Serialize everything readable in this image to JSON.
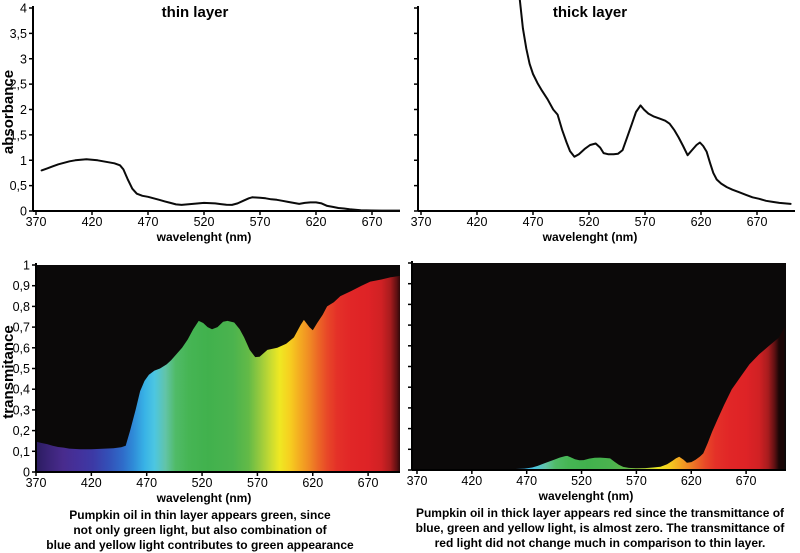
{
  "figure": {
    "background": "#ffffff",
    "plot_background_dark": "#0b0909",
    "curve_color": "#0a0a0a"
  },
  "captions": {
    "thin": {
      "lines": [
        "Pumpkin oil in thin layer appears green, since",
        "not only green light, but also combination of",
        "blue and yellow light contributes to green appearance"
      ]
    },
    "thick": {
      "lines": [
        "Pumpkin oil in thick layer appears red since the transmittance of",
        "blue, green and yellow light, is almost zero. The transmittance of",
        "red light did not change much in comparison to thin layer."
      ]
    }
  },
  "spectrum_stops": [
    {
      "nm": 370,
      "color": "#2B1C60"
    },
    {
      "nm": 382,
      "color": "#3B2478"
    },
    {
      "nm": 394,
      "color": "#482B8C"
    },
    {
      "nm": 408,
      "color": "#44319B"
    },
    {
      "nm": 422,
      "color": "#3C3AA6"
    },
    {
      "nm": 436,
      "color": "#3351B8"
    },
    {
      "nm": 448,
      "color": "#2F6BC9"
    },
    {
      "nm": 458,
      "color": "#2F8CD8"
    },
    {
      "nm": 468,
      "color": "#38B2E6"
    },
    {
      "nm": 477,
      "color": "#4CC6E2"
    },
    {
      "nm": 487,
      "color": "#62C4A8"
    },
    {
      "nm": 496,
      "color": "#50BB68"
    },
    {
      "nm": 508,
      "color": "#46B554"
    },
    {
      "nm": 525,
      "color": "#41B14D"
    },
    {
      "nm": 548,
      "color": "#4BB34E"
    },
    {
      "nm": 562,
      "color": "#63BA47"
    },
    {
      "nm": 572,
      "color": "#95C93E"
    },
    {
      "nm": 582,
      "color": "#C8DB31"
    },
    {
      "nm": 590,
      "color": "#EFE822"
    },
    {
      "nm": 599,
      "color": "#F6D020"
    },
    {
      "nm": 608,
      "color": "#F4AC21"
    },
    {
      "nm": 617,
      "color": "#F08A24"
    },
    {
      "nm": 625,
      "color": "#EC6726"
    },
    {
      "nm": 633,
      "color": "#E84828"
    },
    {
      "nm": 642,
      "color": "#E43128"
    },
    {
      "nm": 655,
      "color": "#E12627"
    },
    {
      "nm": 670,
      "color": "#DE2326"
    },
    {
      "nm": 682,
      "color": "#D02124"
    },
    {
      "nm": 690,
      "color": "#A81C1E"
    },
    {
      "nm": 696,
      "color": "#5E1012"
    },
    {
      "nm": 700,
      "color": "#1A0606"
    }
  ],
  "chart_data": [
    {
      "type": "line",
      "title": "thin layer",
      "xlabel": "wavelenght (nm)",
      "ylabel": "absorbance",
      "xlim": [
        370,
        700
      ],
      "ylim": [
        0,
        4
      ],
      "x_tick_labels": [
        "370",
        "420",
        "470",
        "520",
        "570",
        "620",
        "670"
      ],
      "y_tick_labels": [
        "4",
        "3,5",
        "3",
        "2,5",
        "2",
        "1,5",
        "1",
        "0,5",
        "0"
      ],
      "points": [
        [
          375,
          0.8
        ],
        [
          380,
          0.84
        ],
        [
          385,
          0.88
        ],
        [
          390,
          0.92
        ],
        [
          395,
          0.95
        ],
        [
          400,
          0.98
        ],
        [
          405,
          1.0
        ],
        [
          410,
          1.01
        ],
        [
          415,
          1.02
        ],
        [
          420,
          1.01
        ],
        [
          425,
          1.0
        ],
        [
          430,
          0.98
        ],
        [
          435,
          0.96
        ],
        [
          440,
          0.94
        ],
        [
          445,
          0.9
        ],
        [
          448,
          0.82
        ],
        [
          452,
          0.62
        ],
        [
          456,
          0.44
        ],
        [
          460,
          0.34
        ],
        [
          465,
          0.3
        ],
        [
          470,
          0.28
        ],
        [
          475,
          0.25
        ],
        [
          480,
          0.22
        ],
        [
          485,
          0.19
        ],
        [
          490,
          0.16
        ],
        [
          495,
          0.13
        ],
        [
          500,
          0.12
        ],
        [
          505,
          0.13
        ],
        [
          510,
          0.14
        ],
        [
          515,
          0.15
        ],
        [
          520,
          0.16
        ],
        [
          525,
          0.155
        ],
        [
          530,
          0.15
        ],
        [
          535,
          0.135
        ],
        [
          540,
          0.125
        ],
        [
          545,
          0.12
        ],
        [
          550,
          0.15
        ],
        [
          555,
          0.2
        ],
        [
          560,
          0.25
        ],
        [
          563,
          0.27
        ],
        [
          570,
          0.26
        ],
        [
          575,
          0.25
        ],
        [
          580,
          0.23
        ],
        [
          585,
          0.22
        ],
        [
          590,
          0.2
        ],
        [
          595,
          0.18
        ],
        [
          600,
          0.16
        ],
        [
          605,
          0.14
        ],
        [
          610,
          0.16
        ],
        [
          615,
          0.17
        ],
        [
          620,
          0.17
        ],
        [
          625,
          0.15
        ],
        [
          630,
          0.1
        ],
        [
          635,
          0.08
        ],
        [
          640,
          0.06
        ],
        [
          645,
          0.05
        ],
        [
          650,
          0.035
        ],
        [
          655,
          0.025
        ],
        [
          660,
          0.015
        ],
        [
          665,
          0.012
        ],
        [
          670,
          0.01
        ],
        [
          680,
          0.008
        ],
        [
          690,
          0.007
        ],
        [
          695,
          0.007
        ]
      ]
    },
    {
      "type": "line",
      "title": "thick layer",
      "xlabel": "wavelenght (nm)",
      "ylabel": "",
      "xlim": [
        370,
        700
      ],
      "ylim": [
        0,
        4
      ],
      "x_tick_labels": [
        "370",
        "420",
        "470",
        "520",
        "570",
        "620",
        "670"
      ],
      "y_tick_labels": [
        "",
        "",
        "",
        "",
        "",
        "",
        "",
        "",
        ""
      ],
      "points": [
        [
          458,
          4.2
        ],
        [
          461,
          3.6
        ],
        [
          464,
          3.2
        ],
        [
          467,
          2.9
        ],
        [
          470,
          2.7
        ],
        [
          474,
          2.52
        ],
        [
          478,
          2.37
        ],
        [
          483,
          2.2
        ],
        [
          488,
          2.0
        ],
        [
          492,
          1.9
        ],
        [
          496,
          1.6
        ],
        [
          500,
          1.35
        ],
        [
          503,
          1.18
        ],
        [
          507,
          1.07
        ],
        [
          511,
          1.12
        ],
        [
          516,
          1.22
        ],
        [
          521,
          1.3
        ],
        [
          526,
          1.33
        ],
        [
          530,
          1.25
        ],
        [
          533,
          1.14
        ],
        [
          537,
          1.12
        ],
        [
          542,
          1.12
        ],
        [
          546,
          1.13
        ],
        [
          550,
          1.2
        ],
        [
          554,
          1.45
        ],
        [
          558,
          1.7
        ],
        [
          562,
          1.95
        ],
        [
          566,
          2.08
        ],
        [
          569,
          2.0
        ],
        [
          573,
          1.92
        ],
        [
          578,
          1.86
        ],
        [
          583,
          1.82
        ],
        [
          588,
          1.78
        ],
        [
          592,
          1.72
        ],
        [
          596,
          1.6
        ],
        [
          600,
          1.45
        ],
        [
          604,
          1.28
        ],
        [
          608,
          1.1
        ],
        [
          612,
          1.2
        ],
        [
          616,
          1.3
        ],
        [
          619,
          1.35
        ],
        [
          622,
          1.28
        ],
        [
          625,
          1.17
        ],
        [
          628,
          0.95
        ],
        [
          631,
          0.75
        ],
        [
          634,
          0.62
        ],
        [
          638,
          0.54
        ],
        [
          643,
          0.47
        ],
        [
          648,
          0.42
        ],
        [
          654,
          0.37
        ],
        [
          660,
          0.32
        ],
        [
          666,
          0.27
        ],
        [
          672,
          0.24
        ],
        [
          678,
          0.2
        ],
        [
          684,
          0.18
        ],
        [
          690,
          0.16
        ],
        [
          695,
          0.15
        ],
        [
          700,
          0.14
        ]
      ]
    },
    {
      "type": "area",
      "title": "",
      "xlabel": "wavelenght (nm)",
      "ylabel": "transmitance",
      "xlim": [
        370,
        700
      ],
      "ylim": [
        0,
        1
      ],
      "fill": "spectrum",
      "background": "#0b0909",
      "x_tick_labels": [
        "370",
        "420",
        "470",
        "520",
        "570",
        "620",
        "670"
      ],
      "y_tick_labels": [
        "1",
        "0,9",
        "0,8",
        "0,7",
        "0,6",
        "0,5",
        "0,4",
        "0,3",
        "0,2",
        "0,1",
        "0"
      ],
      "points": [
        [
          370,
          0.147
        ],
        [
          375,
          0.14
        ],
        [
          380,
          0.135
        ],
        [
          385,
          0.127
        ],
        [
          390,
          0.121
        ],
        [
          395,
          0.118
        ],
        [
          400,
          0.113
        ],
        [
          410,
          0.11
        ],
        [
          420,
          0.11
        ],
        [
          430,
          0.112
        ],
        [
          440,
          0.115
        ],
        [
          447,
          0.12
        ],
        [
          451,
          0.127
        ],
        [
          455,
          0.2
        ],
        [
          460,
          0.3
        ],
        [
          464,
          0.39
        ],
        [
          468,
          0.44
        ],
        [
          472,
          0.47
        ],
        [
          477,
          0.49
        ],
        [
          482,
          0.5
        ],
        [
          488,
          0.52
        ],
        [
          492,
          0.54
        ],
        [
          497,
          0.57
        ],
        [
          502,
          0.6
        ],
        [
          507,
          0.64
        ],
        [
          512,
          0.69
        ],
        [
          517,
          0.73
        ],
        [
          521,
          0.72
        ],
        [
          525,
          0.7
        ],
        [
          529,
          0.69
        ],
        [
          534,
          0.7
        ],
        [
          539,
          0.726
        ],
        [
          543,
          0.73
        ],
        [
          549,
          0.722
        ],
        [
          554,
          0.69
        ],
        [
          558,
          0.65
        ],
        [
          563,
          0.59
        ],
        [
          568,
          0.555
        ],
        [
          572,
          0.557
        ],
        [
          579,
          0.59
        ],
        [
          588,
          0.6
        ],
        [
          596,
          0.62
        ],
        [
          603,
          0.65
        ],
        [
          609,
          0.71
        ],
        [
          612,
          0.735
        ],
        [
          617,
          0.7
        ],
        [
          620,
          0.685
        ],
        [
          624,
          0.72
        ],
        [
          629,
          0.76
        ],
        [
          633,
          0.8
        ],
        [
          639,
          0.82
        ],
        [
          645,
          0.85
        ],
        [
          655,
          0.875
        ],
        [
          664,
          0.9
        ],
        [
          672,
          0.92
        ],
        [
          682,
          0.93
        ],
        [
          690,
          0.94
        ],
        [
          699,
          0.948
        ]
      ]
    },
    {
      "type": "area",
      "title": "",
      "xlabel": "wavelenght (nm)",
      "ylabel": "",
      "xlim": [
        370,
        700
      ],
      "ylim": [
        0,
        1
      ],
      "fill": "spectrum",
      "background": "#0b0909",
      "x_tick_labels": [
        "370",
        "420",
        "470",
        "520",
        "570",
        "620",
        "670"
      ],
      "y_tick_labels": [
        "",
        "",
        "",
        "",
        "",
        "",
        "",
        "",
        "",
        "",
        ""
      ],
      "points": [
        [
          370,
          0.003
        ],
        [
          420,
          0.003
        ],
        [
          450,
          0.004
        ],
        [
          460,
          0.005
        ],
        [
          468,
          0.007
        ],
        [
          475,
          0.012
        ],
        [
          480,
          0.02
        ],
        [
          485,
          0.03
        ],
        [
          490,
          0.04
        ],
        [
          495,
          0.05
        ],
        [
          500,
          0.06
        ],
        [
          505,
          0.067
        ],
        [
          507,
          0.068
        ],
        [
          510,
          0.062
        ],
        [
          514,
          0.052
        ],
        [
          518,
          0.047
        ],
        [
          522,
          0.048
        ],
        [
          527,
          0.055
        ],
        [
          532,
          0.059
        ],
        [
          537,
          0.06
        ],
        [
          542,
          0.058
        ],
        [
          546,
          0.056
        ],
        [
          550,
          0.04
        ],
        [
          554,
          0.025
        ],
        [
          558,
          0.015
        ],
        [
          563,
          0.01
        ],
        [
          570,
          0.008
        ],
        [
          578,
          0.009
        ],
        [
          585,
          0.012
        ],
        [
          592,
          0.016
        ],
        [
          598,
          0.028
        ],
        [
          603,
          0.045
        ],
        [
          606,
          0.056
        ],
        [
          609,
          0.064
        ],
        [
          613,
          0.05
        ],
        [
          616,
          0.035
        ],
        [
          620,
          0.038
        ],
        [
          624,
          0.05
        ],
        [
          628,
          0.065
        ],
        [
          631,
          0.08
        ],
        [
          635,
          0.13
        ],
        [
          639,
          0.185
        ],
        [
          644,
          0.245
        ],
        [
          650,
          0.315
        ],
        [
          657,
          0.39
        ],
        [
          665,
          0.45
        ],
        [
          673,
          0.51
        ],
        [
          682,
          0.56
        ],
        [
          691,
          0.6
        ],
        [
          700,
          0.64
        ],
        [
          705,
          0.69
        ]
      ]
    }
  ]
}
